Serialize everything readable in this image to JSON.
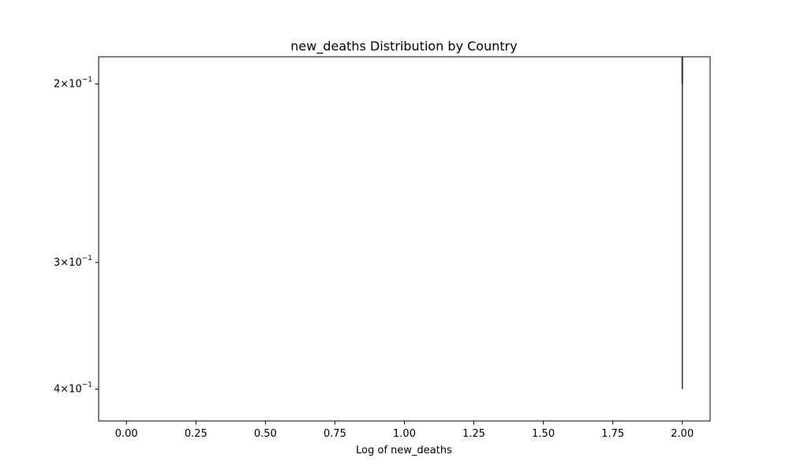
{
  "chart_data": {
    "type": "box",
    "title": "new_deaths Distribution by Country",
    "xlabel": "Log of new_deaths",
    "ylabel": "",
    "x_scale": "linear",
    "y_scale": "log",
    "y_inverted": true,
    "grid": false,
    "xlim": [
      -0.1,
      2.1
    ],
    "ylim": [
      0.188,
      0.43
    ],
    "x_ticks": [
      {
        "value": 0.0,
        "label": "0.00"
      },
      {
        "value": 0.25,
        "label": "0.25"
      },
      {
        "value": 0.5,
        "label": "0.50"
      },
      {
        "value": 0.75,
        "label": "0.75"
      },
      {
        "value": 1.0,
        "label": "1.00"
      },
      {
        "value": 1.25,
        "label": "1.25"
      },
      {
        "value": 1.5,
        "label": "1.50"
      },
      {
        "value": 1.75,
        "label": "1.75"
      },
      {
        "value": 2.0,
        "label": "2.00"
      }
    ],
    "y_ticks": [
      {
        "value": 0.2,
        "mantissa": "2",
        "base": "10",
        "exp": "−1"
      },
      {
        "value": 0.3,
        "mantissa": "3",
        "base": "10",
        "exp": "−1"
      },
      {
        "value": 0.4,
        "mantissa": "4",
        "base": "10",
        "exp": "−1"
      }
    ],
    "series": [
      {
        "category_value": 0.2,
        "whisker_low": 0.4,
        "whisker_high": 0.188,
        "median": 2.0,
        "value": 2.0
      }
    ],
    "colors": {
      "axis": "#000000",
      "box": "#3f3f3f"
    }
  }
}
